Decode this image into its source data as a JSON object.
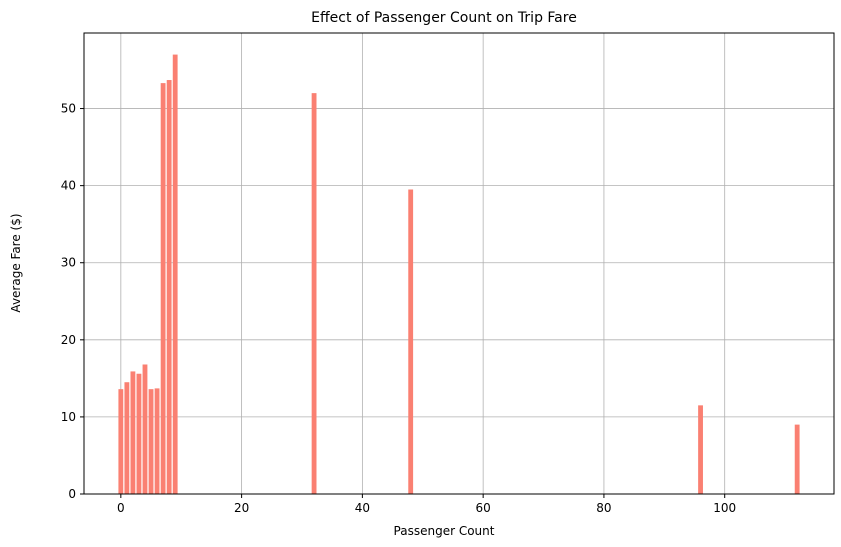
{
  "chart_data": {
    "type": "bar",
    "title": "Effect of Passenger Count on Trip Fare",
    "xlabel": "Passenger Count",
    "ylabel": "Average Fare ($)",
    "xlim": [
      -6.1,
      118.1
    ],
    "ylim": [
      0,
      59.8
    ],
    "xticks": [
      0,
      20,
      40,
      60,
      80,
      100
    ],
    "yticks": [
      0,
      10,
      20,
      30,
      40,
      50
    ],
    "grid": true,
    "bar_color": "#fa8072",
    "points": [
      {
        "x": 0,
        "y": 13.6
      },
      {
        "x": 1,
        "y": 14.5
      },
      {
        "x": 2,
        "y": 15.9
      },
      {
        "x": 3,
        "y": 15.6
      },
      {
        "x": 4,
        "y": 16.8
      },
      {
        "x": 5,
        "y": 13.6
      },
      {
        "x": 6,
        "y": 13.7
      },
      {
        "x": 7,
        "y": 53.3
      },
      {
        "x": 8,
        "y": 53.7
      },
      {
        "x": 9,
        "y": 57.0
      },
      {
        "x": 32,
        "y": 52.0
      },
      {
        "x": 48,
        "y": 39.5
      },
      {
        "x": 96,
        "y": 11.5
      },
      {
        "x": 112,
        "y": 9.0
      }
    ]
  }
}
